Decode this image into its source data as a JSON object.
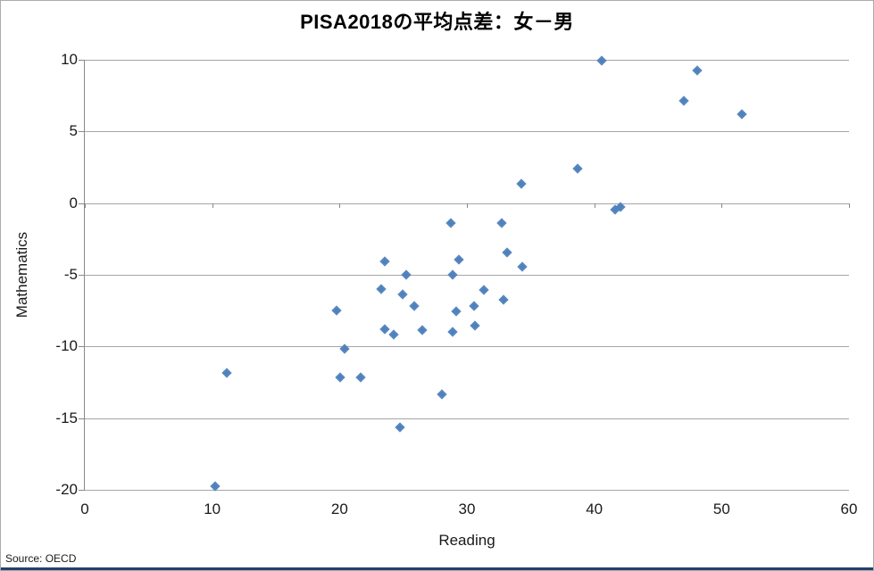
{
  "title": "PISA2018の平均点差：女－男",
  "source": "Source: OECD",
  "colors": {
    "marker": "#4f81bd",
    "gridline": "#a6a6a6",
    "axis": "#898989",
    "accent_bar": "#24406b",
    "text": "#1a1a1a"
  },
  "chart_data": {
    "type": "scatter",
    "title": "PISA2018の平均点差：女－男",
    "xlabel": "Reading",
    "ylabel": "Mathematics",
    "xlim": [
      0,
      60
    ],
    "ylim": [
      -20,
      10
    ],
    "x_ticks": [
      0,
      10,
      20,
      30,
      40,
      50,
      60
    ],
    "y_ticks": [
      10,
      5,
      0,
      -5,
      -10,
      -15,
      -20
    ],
    "grid": "horizontal-only",
    "legend": "none",
    "marker_shape": "diamond",
    "points": [
      [
        10.3,
        -19.8
      ],
      [
        11.2,
        -11.9
      ],
      [
        19.8,
        -7.5
      ],
      [
        20.1,
        -12.2
      ],
      [
        20.4,
        -10.2
      ],
      [
        21.7,
        -12.2
      ],
      [
        23.3,
        -6.0
      ],
      [
        23.6,
        -4.1
      ],
      [
        23.6,
        -8.8
      ],
      [
        24.3,
        -9.2
      ],
      [
        24.8,
        -15.7
      ],
      [
        25.0,
        -6.4
      ],
      [
        25.3,
        -5.0
      ],
      [
        25.9,
        -7.2
      ],
      [
        26.5,
        -8.9
      ],
      [
        28.1,
        -13.4
      ],
      [
        28.8,
        -1.4
      ],
      [
        28.9,
        -5.0
      ],
      [
        28.9,
        -9.0
      ],
      [
        29.2,
        -7.6
      ],
      [
        29.4,
        -4.0
      ],
      [
        30.6,
        -7.2
      ],
      [
        30.7,
        -8.6
      ],
      [
        31.4,
        -6.1
      ],
      [
        32.8,
        -1.4
      ],
      [
        32.9,
        -6.8
      ],
      [
        33.2,
        -3.5
      ],
      [
        34.3,
        1.3
      ],
      [
        34.4,
        -4.5
      ],
      [
        38.7,
        2.4
      ],
      [
        40.6,
        9.9
      ],
      [
        41.7,
        -0.5
      ],
      [
        42.1,
        -0.3
      ],
      [
        47.1,
        7.1
      ],
      [
        48.1,
        9.2
      ],
      [
        51.6,
        6.2
      ]
    ]
  }
}
